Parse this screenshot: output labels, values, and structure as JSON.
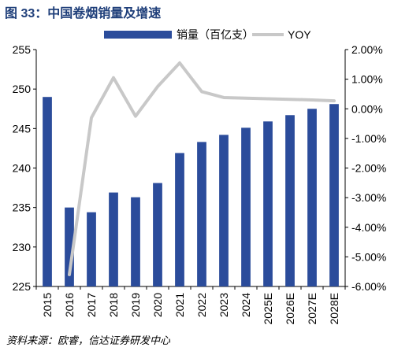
{
  "figure": {
    "title": "图 33：中国卷烟销量及增速",
    "source": "资料来源：欧睿，信达证券研发中心"
  },
  "chart_data": {
    "type": "bar",
    "title": "",
    "categories": [
      "2015",
      "2016",
      "2017",
      "2018",
      "2019",
      "2020",
      "2021",
      "2022",
      "2023",
      "2024",
      "2025E",
      "2026E",
      "2027E",
      "2028E"
    ],
    "series": [
      {
        "name": "销量（百亿支）",
        "type": "bar",
        "axis": "left",
        "color": "#2b4c9b",
        "values": [
          249.0,
          235.0,
          234.4,
          236.9,
          236.3,
          238.1,
          241.9,
          243.3,
          244.2,
          245.1,
          245.9,
          246.7,
          247.5,
          248.1
        ]
      },
      {
        "name": "YOY",
        "type": "line",
        "axis": "right",
        "color": "#c8c8c8",
        "values": [
          null,
          -5.6,
          -0.3,
          1.05,
          -0.25,
          0.75,
          1.55,
          0.58,
          0.38,
          0.36,
          0.34,
          0.32,
          0.3,
          0.27
        ]
      }
    ],
    "left_axis": {
      "ylim": [
        225,
        255
      ],
      "ticks": [
        "225",
        "230",
        "235",
        "240",
        "245",
        "250",
        "255"
      ]
    },
    "right_axis": {
      "ylim": [
        -6,
        2
      ],
      "ticks": [
        "-6.00%",
        "-5.00%",
        "-4.00%",
        "-3.00%",
        "-2.00%",
        "-1.00%",
        "0.00%",
        "1.00%",
        "2.00%"
      ]
    },
    "grid": false,
    "legend_position": "top"
  }
}
